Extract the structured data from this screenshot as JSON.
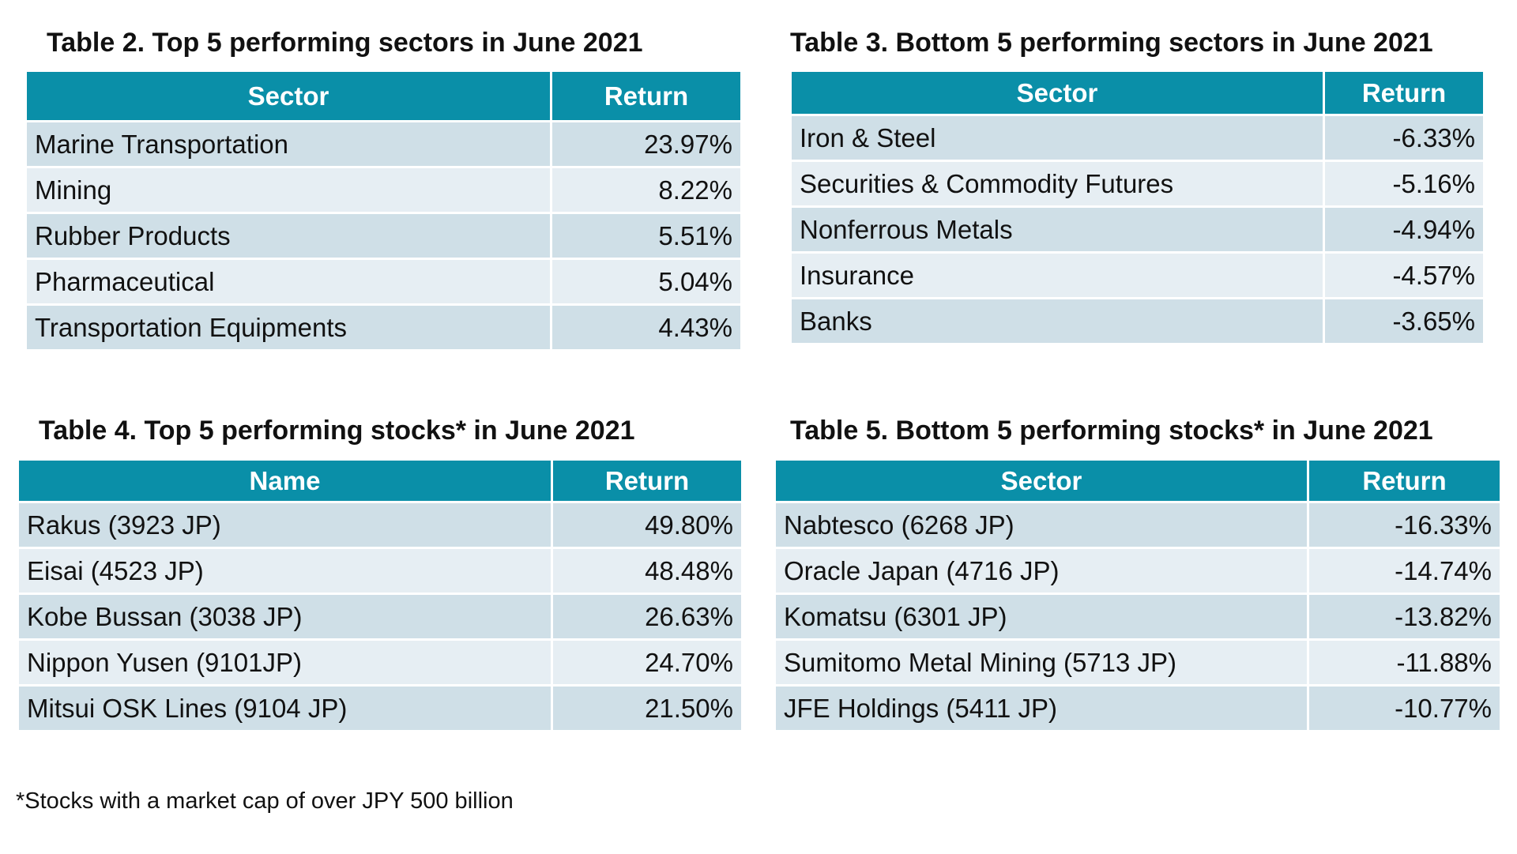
{
  "tables": [
    {
      "title": "Table 2. Top 5 performing sectors in June 2021",
      "columns": [
        "Sector",
        "Return"
      ],
      "rows": [
        [
          "Marine Transportation",
          "23.97%"
        ],
        [
          "Mining",
          "8.22%"
        ],
        [
          "Rubber Products",
          "5.51%"
        ],
        [
          "Pharmaceutical",
          "5.04%"
        ],
        [
          "Transportation Equipments",
          "4.43%"
        ]
      ]
    },
    {
      "title": "Table 3. Bottom 5 performing sectors in June 2021",
      "columns": [
        "Sector",
        "Return"
      ],
      "rows": [
        [
          "Iron & Steel",
          "-6.33%"
        ],
        [
          "Securities & Commodity Futures",
          "-5.16%"
        ],
        [
          "Nonferrous Metals",
          "-4.94%"
        ],
        [
          "Insurance",
          "-4.57%"
        ],
        [
          "Banks",
          "-3.65%"
        ]
      ]
    },
    {
      "title": "Table 4. Top 5 performing stocks* in June 2021",
      "columns": [
        "Name",
        "Return"
      ],
      "rows": [
        [
          "Rakus (3923 JP)",
          "49.80%"
        ],
        [
          "Eisai (4523 JP)",
          "48.48%"
        ],
        [
          "Kobe Bussan (3038 JP)",
          "26.63%"
        ],
        [
          "Nippon Yusen (9101JP)",
          "24.70%"
        ],
        [
          "Mitsui OSK Lines (9104 JP)",
          "21.50%"
        ]
      ]
    },
    {
      "title": "Table 5. Bottom 5 performing stocks* in June 2021",
      "columns": [
        "Sector",
        "Return"
      ],
      "rows": [
        [
          "Nabtesco (6268 JP)",
          "-16.33%"
        ],
        [
          "Oracle Japan (4716 JP)",
          "-14.74%"
        ],
        [
          "Komatsu (6301 JP)",
          "-13.82%"
        ],
        [
          "Sumitomo Metal Mining (5713 JP)",
          "-11.88%"
        ],
        [
          "JFE Holdings (5411 JP)",
          "-10.77%"
        ]
      ]
    }
  ],
  "footnote": "*Stocks with a market cap of over JPY 500 billion"
}
